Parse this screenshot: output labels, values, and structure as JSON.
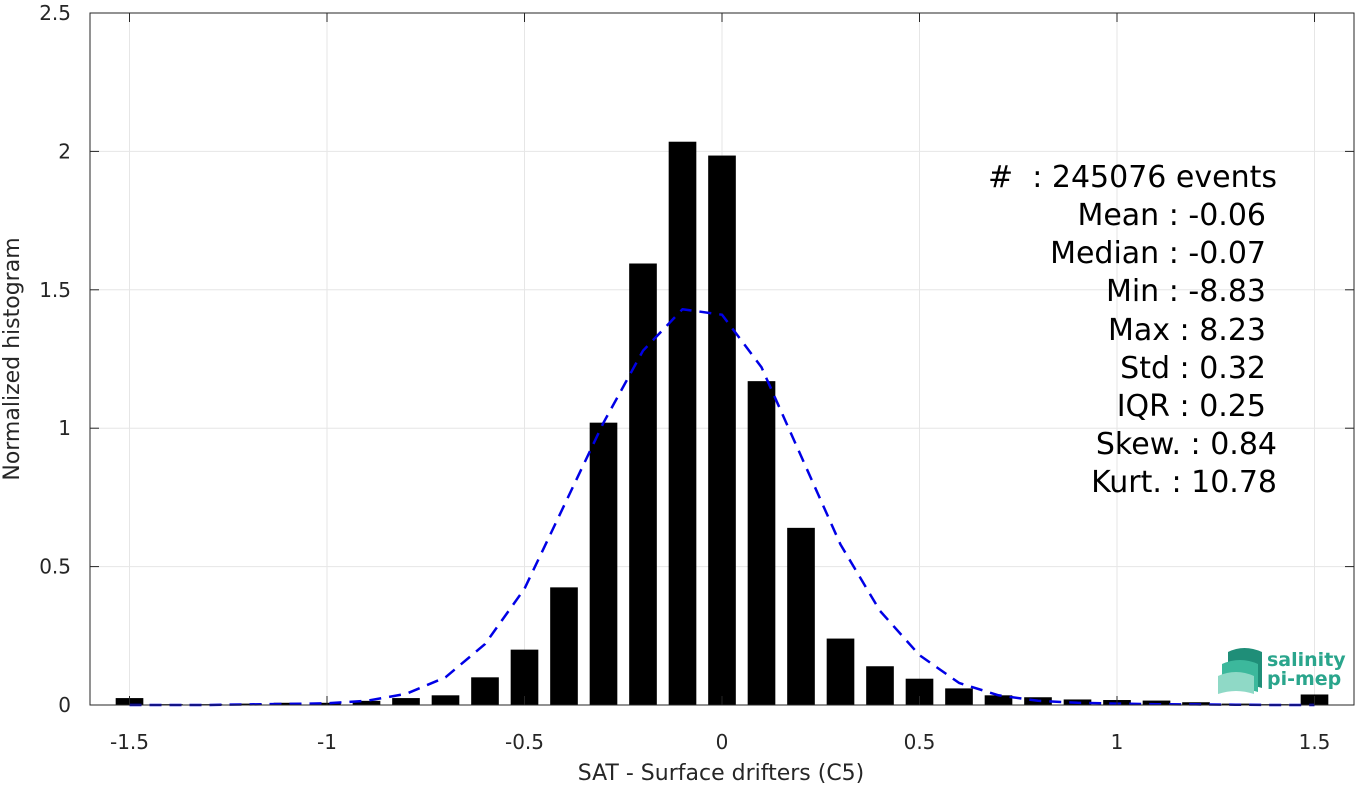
{
  "chart_data": {
    "type": "bar",
    "xlabel": "SAT - Surface drifters (C5)",
    "ylabel": "Normalized histogram",
    "xlim": [
      -1.6,
      1.6
    ],
    "ylim": [
      0,
      2.5
    ],
    "xticks": [
      -1.5,
      -1,
      -0.5,
      0,
      0.5,
      1,
      1.5
    ],
    "xtick_labels": [
      "-1.5",
      "-1",
      "-0.5",
      "0",
      "0.5",
      "1",
      "1.5"
    ],
    "yticks": [
      0,
      0.5,
      1,
      1.5,
      2,
      2.5
    ],
    "ytick_labels": [
      "0",
      "0.5",
      "1",
      "1.5",
      "2",
      "2.5"
    ],
    "grid": true,
    "bar_color": "#000000",
    "bar_width": 0.07,
    "series": [
      {
        "type": "bar",
        "x": [
          -1.5,
          -1.4,
          -1.3,
          -1.2,
          -1.1,
          -1.0,
          -0.9,
          -0.8,
          -0.7,
          -0.6,
          -0.5,
          -0.4,
          -0.3,
          -0.2,
          -0.1,
          0.0,
          0.1,
          0.2,
          0.3,
          0.4,
          0.5,
          0.6,
          0.7,
          0.8,
          0.9,
          1.0,
          1.1,
          1.2,
          1.3,
          1.4,
          1.5
        ],
        "values": [
          0.025,
          0.003,
          0.003,
          0.005,
          0.008,
          0.008,
          0.015,
          0.025,
          0.035,
          0.1,
          0.2,
          0.425,
          1.02,
          1.595,
          2.035,
          1.985,
          1.17,
          0.64,
          0.24,
          0.14,
          0.095,
          0.06,
          0.035,
          0.028,
          0.02,
          0.018,
          0.016,
          0.01,
          0.005,
          0.003,
          0.038
        ]
      },
      {
        "type": "line",
        "style": "dashed",
        "color": "#0000e6",
        "x": [
          -1.5,
          -1.4,
          -1.3,
          -1.2,
          -1.1,
          -1.0,
          -0.9,
          -0.8,
          -0.7,
          -0.6,
          -0.5,
          -0.4,
          -0.3,
          -0.2,
          -0.1,
          0.0,
          0.1,
          0.2,
          0.3,
          0.4,
          0.5,
          0.6,
          0.7,
          0.8,
          0.9,
          1.0,
          1.1,
          1.2,
          1.3,
          1.4,
          1.5
        ],
        "values": [
          0.0,
          0.0,
          0.0,
          0.002,
          0.004,
          0.006,
          0.015,
          0.04,
          0.1,
          0.22,
          0.42,
          0.72,
          1.02,
          1.28,
          1.43,
          1.41,
          1.22,
          0.9,
          0.58,
          0.34,
          0.18,
          0.08,
          0.035,
          0.015,
          0.008,
          0.005,
          0.003,
          0.002,
          0.001,
          0.0,
          0.0
        ]
      }
    ]
  },
  "stats": {
    "events": "#  : 245076 events",
    "mean": "Mean : -0.06",
    "median": "Median : -0.07",
    "min": "Min : -8.83",
    "max": "Max : 8.23",
    "std": "Std : 0.32",
    "iqr": "IQR : 0.25",
    "skew": "Skew. : 0.84",
    "kurt": "Kurt. : 10.78"
  },
  "logo": {
    "line1": "salinity",
    "line2": "pi-mep",
    "color": "#2aa58c"
  }
}
